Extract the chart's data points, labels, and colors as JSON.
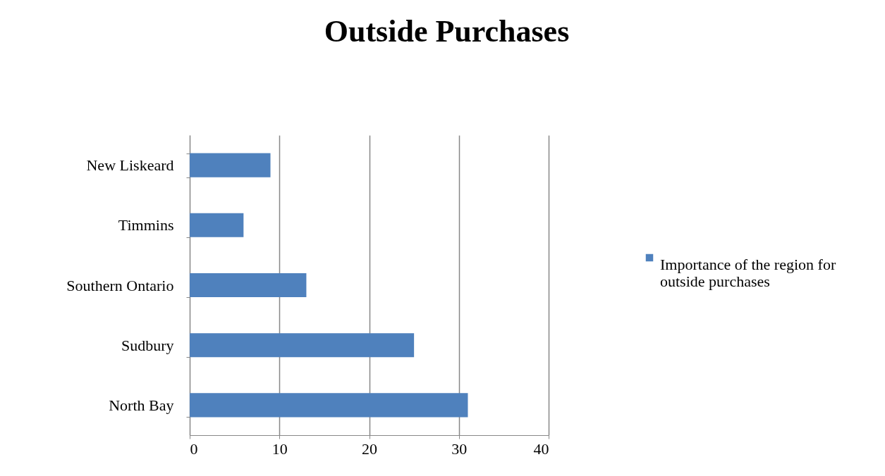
{
  "chart_data": {
    "type": "bar",
    "orientation": "horizontal",
    "title": "Outside Purchases",
    "categories": [
      "New Liskeard",
      "Timmins",
      "Southern Ontario",
      "Sudbury",
      "North Bay"
    ],
    "series": [
      {
        "name": "Importance of the region for outside purchases",
        "color": "#4f81bd",
        "values": [
          9,
          6,
          13,
          25,
          31
        ]
      }
    ],
    "xlim": [
      0,
      40
    ],
    "xticks": [
      0,
      10,
      20,
      30,
      40
    ],
    "grid": "x",
    "legend": "right"
  }
}
